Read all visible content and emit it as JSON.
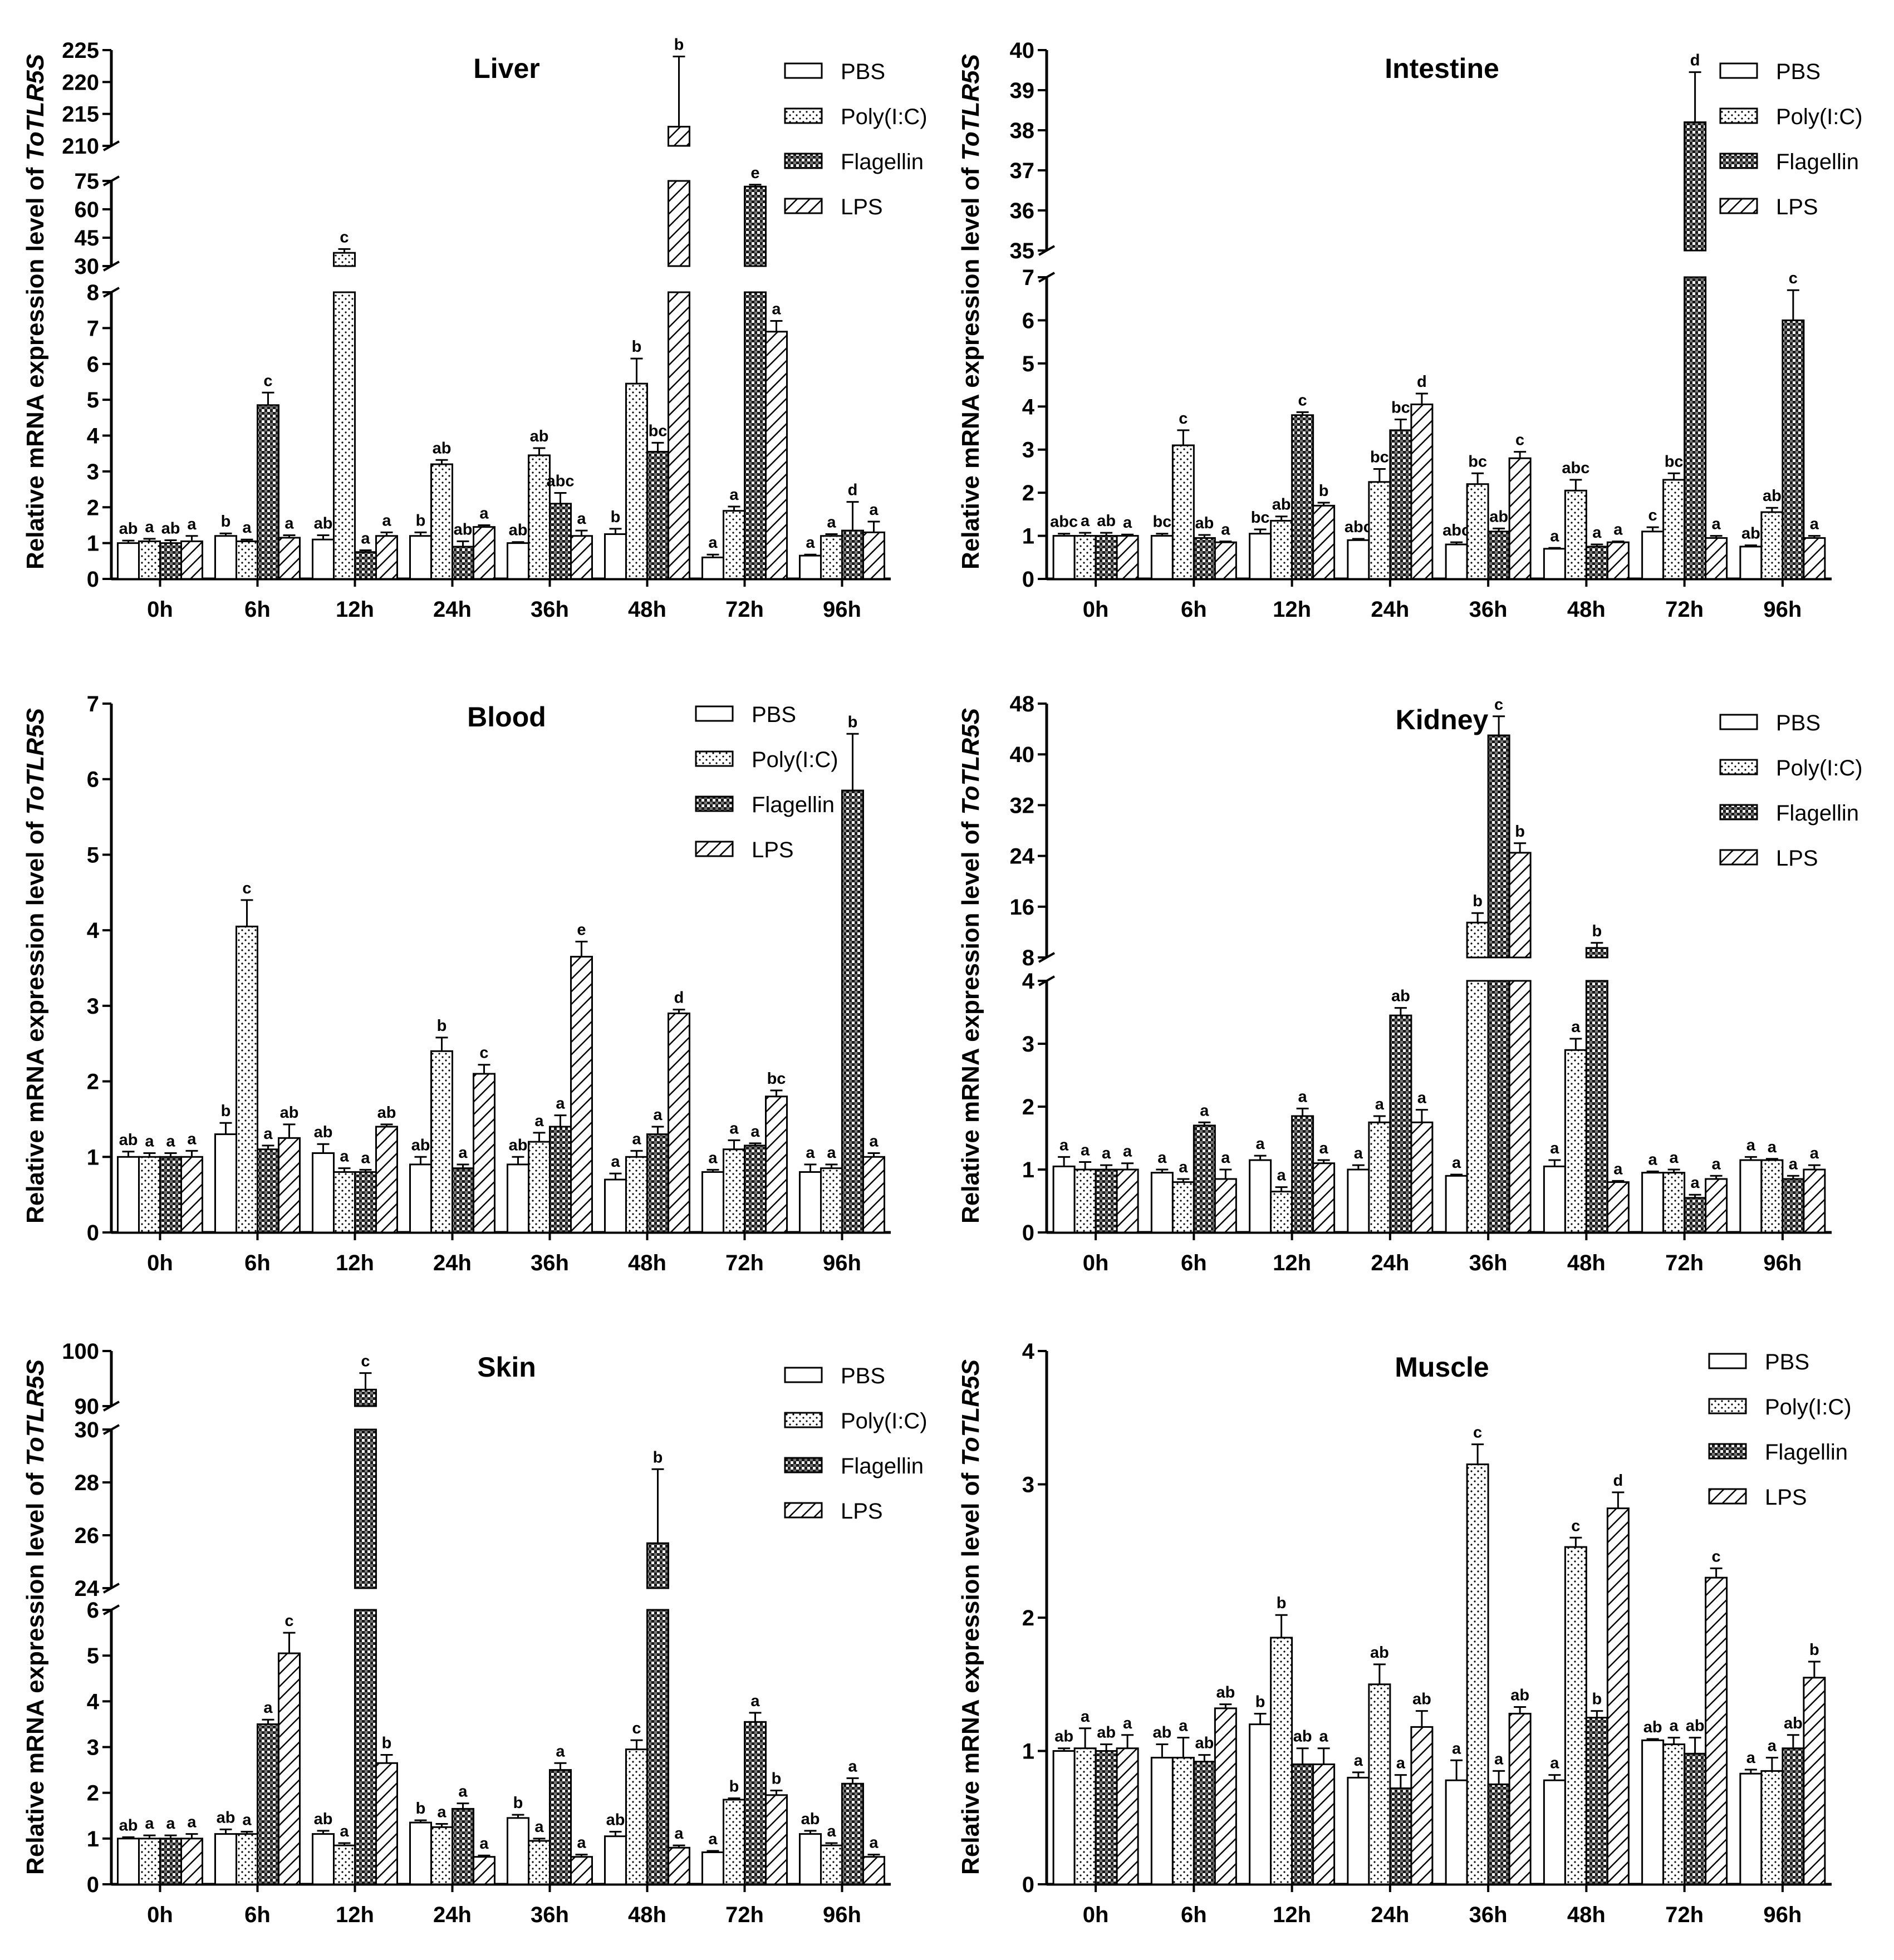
{
  "chart_data": [
    {
      "type": "bar",
      "title": "Liver",
      "ylabel": "Relative mRNA expression level of ",
      "ylabel_italic": "ToTLR5S",
      "categories": [
        "0h",
        "6h",
        "12h",
        "24h",
        "36h",
        "48h",
        "72h",
        "96h"
      ],
      "legend": [
        "PBS",
        "Poly(I:C)",
        "Flagellin",
        "LPS"
      ],
      "segments": [
        {
          "min": 0,
          "max": 8,
          "ticks": [
            0,
            1,
            2,
            3,
            4,
            5,
            6,
            7,
            8
          ]
        },
        {
          "min": 30,
          "max": 75,
          "ticks": [
            30,
            45,
            60,
            75
          ]
        },
        {
          "min": 210,
          "max": 225,
          "ticks": [
            210,
            215,
            220,
            225
          ]
        }
      ],
      "series": [
        {
          "name": "PBS",
          "values": [
            1.0,
            1.2,
            1.1,
            1.2,
            1.0,
            1.25,
            0.6,
            0.65
          ],
          "errors": [
            0.07,
            0.07,
            0.12,
            0.1,
            0.03,
            0.15,
            0.08,
            0.03
          ],
          "labels": [
            "ab",
            "b",
            "ab",
            "b",
            "ab",
            "b",
            "a",
            "a"
          ]
        },
        {
          "name": "Poly(I:C)",
          "values": [
            1.05,
            1.05,
            37,
            3.2,
            3.45,
            5.45,
            1.9,
            1.2
          ],
          "errors": [
            0.07,
            0.05,
            2,
            0.12,
            0.2,
            0.7,
            0.12,
            0.05
          ],
          "labels": [
            "a",
            "a",
            "c",
            "ab",
            "ab",
            "b",
            "a",
            "a"
          ]
        },
        {
          "name": "Flagellin",
          "values": [
            1.0,
            4.85,
            0.75,
            0.9,
            2.1,
            3.55,
            72,
            1.35
          ],
          "errors": [
            0.08,
            0.35,
            0.05,
            0.15,
            0.3,
            0.25,
            1,
            0.8
          ],
          "labels": [
            "ab",
            "c",
            "a",
            "ab",
            "abc",
            "bc",
            "e",
            "d"
          ]
        },
        {
          "name": "LPS",
          "values": [
            1.05,
            1.15,
            1.2,
            1.45,
            1.2,
            213,
            6.9,
            1.3
          ],
          "errors": [
            0.15,
            0.07,
            0.1,
            0.05,
            0.15,
            11,
            0.3,
            0.3
          ],
          "labels": [
            "a",
            "a",
            "a",
            "a",
            "a",
            "b",
            "a",
            "a"
          ]
        }
      ]
    },
    {
      "type": "bar",
      "title": "Intestine",
      "ylabel": "Relative mRNA expression level of ",
      "ylabel_italic": "ToTLR5S",
      "categories": [
        "0h",
        "6h",
        "12h",
        "24h",
        "36h",
        "48h",
        "72h",
        "96h"
      ],
      "legend": [
        "PBS",
        "Poly(I:C)",
        "Flagellin",
        "LPS"
      ],
      "segments": [
        {
          "min": 0,
          "max": 7,
          "ticks": [
            0,
            1,
            2,
            3,
            4,
            5,
            6,
            7
          ]
        },
        {
          "min": 35,
          "max": 40,
          "ticks": [
            35,
            36,
            37,
            38,
            39,
            40
          ]
        }
      ],
      "series": [
        {
          "name": "PBS",
          "values": [
            1.0,
            1.0,
            1.05,
            0.9,
            0.8,
            0.7,
            1.1,
            0.75
          ],
          "errors": [
            0.05,
            0.05,
            0.1,
            0.03,
            0.05,
            0.02,
            0.1,
            0.03
          ],
          "labels": [
            "abc",
            "bc",
            "bc",
            "abc",
            "abc",
            "a",
            "c",
            "ab"
          ]
        },
        {
          "name": "Poly(I:C)",
          "values": [
            1.0,
            3.1,
            1.35,
            2.25,
            2.2,
            2.05,
            2.3,
            1.55
          ],
          "errors": [
            0.07,
            0.35,
            0.1,
            0.3,
            0.25,
            0.25,
            0.15,
            0.1
          ],
          "labels": [
            "a",
            "c",
            "ab",
            "bc",
            "bc",
            "abc",
            "bc",
            "ab"
          ]
        },
        {
          "name": "Flagellin",
          "values": [
            1.0,
            0.95,
            3.8,
            3.45,
            1.1,
            0.75,
            38.2,
            6.0
          ],
          "errors": [
            0.07,
            0.07,
            0.07,
            0.25,
            0.07,
            0.05,
            1.25,
            0.7
          ],
          "labels": [
            "ab",
            "ab",
            "c",
            "bc",
            "ab",
            "a",
            "d",
            "c"
          ]
        },
        {
          "name": "LPS",
          "values": [
            1.0,
            0.85,
            1.7,
            4.05,
            2.8,
            0.85,
            0.95,
            0.95
          ],
          "errors": [
            0.03,
            0.02,
            0.07,
            0.25,
            0.15,
            0.02,
            0.05,
            0.05
          ],
          "labels": [
            "a",
            "a",
            "b",
            "d",
            "c",
            "a",
            "a",
            "a"
          ]
        }
      ]
    },
    {
      "type": "bar",
      "title": "Blood",
      "ylabel": "Relative mRNA expression level of ",
      "ylabel_italic": "ToTLR5S",
      "categories": [
        "0h",
        "6h",
        "12h",
        "24h",
        "36h",
        "48h",
        "72h",
        "96h"
      ],
      "legend": [
        "PBS",
        "Poly(I:C)",
        "Flagellin",
        "LPS"
      ],
      "segments": [
        {
          "min": 0,
          "max": 7,
          "ticks": [
            0,
            1,
            2,
            3,
            4,
            5,
            6,
            7
          ]
        }
      ],
      "series": [
        {
          "name": "PBS",
          "values": [
            1.0,
            1.3,
            1.05,
            0.9,
            0.9,
            0.7,
            0.8,
            0.8
          ],
          "errors": [
            0.07,
            0.15,
            0.12,
            0.1,
            0.1,
            0.08,
            0.03,
            0.1
          ],
          "labels": [
            "ab",
            "b",
            "ab",
            "ab",
            "ab",
            "a",
            "a",
            "a"
          ]
        },
        {
          "name": "Poly(I:C)",
          "values": [
            1.0,
            4.05,
            0.8,
            2.4,
            1.2,
            1.0,
            1.1,
            0.85
          ],
          "errors": [
            0.05,
            0.35,
            0.05,
            0.18,
            0.12,
            0.08,
            0.12,
            0.05
          ],
          "labels": [
            "a",
            "c",
            "a",
            "b",
            "a",
            "a",
            "a",
            "a"
          ]
        },
        {
          "name": "Flagellin",
          "values": [
            1.0,
            1.1,
            0.8,
            0.85,
            1.4,
            1.3,
            1.15,
            5.85
          ],
          "errors": [
            0.05,
            0.05,
            0.03,
            0.05,
            0.15,
            0.1,
            0.03,
            0.75
          ],
          "labels": [
            "a",
            "a",
            "a",
            "a",
            "a",
            "a",
            "a",
            "b"
          ]
        },
        {
          "name": "LPS",
          "values": [
            1.0,
            1.25,
            1.4,
            2.1,
            3.65,
            2.9,
            1.8,
            1.0
          ],
          "errors": [
            0.08,
            0.18,
            0.03,
            0.12,
            0.2,
            0.05,
            0.08,
            0.05
          ],
          "labels": [
            "a",
            "ab",
            "ab",
            "c",
            "e",
            "d",
            "bc",
            "a"
          ]
        }
      ]
    },
    {
      "type": "bar",
      "title": "Kidney",
      "ylabel": "Relative mRNA expression level of ",
      "ylabel_italic": "ToTLR5S",
      "categories": [
        "0h",
        "6h",
        "12h",
        "24h",
        "36h",
        "48h",
        "72h",
        "96h"
      ],
      "legend": [
        "PBS",
        "Poly(I:C)",
        "Flagellin",
        "LPS"
      ],
      "segments": [
        {
          "min": 0,
          "max": 4,
          "ticks": [
            0,
            1,
            2,
            3,
            4
          ]
        },
        {
          "min": 8,
          "max": 48,
          "ticks": [
            8,
            16,
            24,
            32,
            40,
            48
          ]
        }
      ],
      "series": [
        {
          "name": "PBS",
          "values": [
            1.05,
            0.95,
            1.15,
            1.0,
            0.9,
            1.05,
            0.95,
            1.15
          ],
          "errors": [
            0.15,
            0.05,
            0.07,
            0.07,
            0.02,
            0.1,
            0.02,
            0.05
          ],
          "labels": [
            "a",
            "a",
            "a",
            "a",
            "a",
            "a",
            "a",
            "a"
          ]
        },
        {
          "name": "Poly(I:C)",
          "values": [
            1.0,
            0.8,
            0.65,
            1.75,
            13.5,
            2.9,
            0.95,
            1.15
          ],
          "errors": [
            0.12,
            0.05,
            0.07,
            0.1,
            1.5,
            0.18,
            0.05,
            0.02
          ],
          "labels": [
            "a",
            "a",
            "a",
            "a",
            "b",
            "a",
            "a",
            "a"
          ]
        },
        {
          "name": "Flagellin",
          "values": [
            1.0,
            1.7,
            1.85,
            3.45,
            43,
            9.5,
            0.55,
            0.85
          ],
          "errors": [
            0.07,
            0.05,
            0.12,
            0.12,
            3,
            0.8,
            0.05,
            0.05
          ],
          "labels": [
            "a",
            "a",
            "a",
            "ab",
            "c",
            "b",
            "a",
            "a"
          ]
        },
        {
          "name": "LPS",
          "values": [
            1.0,
            0.85,
            1.1,
            1.75,
            24.5,
            0.8,
            0.85,
            1.0
          ],
          "errors": [
            0.1,
            0.15,
            0.05,
            0.2,
            1.5,
            0.02,
            0.05,
            0.07
          ],
          "labels": [
            "a",
            "a",
            "a",
            "a",
            "b",
            "a",
            "a",
            "a"
          ]
        }
      ]
    },
    {
      "type": "bar",
      "title": "Skin",
      "ylabel": "Relative mRNA expression level of ",
      "ylabel_italic": "ToTLR5S",
      "categories": [
        "0h",
        "6h",
        "12h",
        "24h",
        "36h",
        "48h",
        "72h",
        "96h"
      ],
      "legend": [
        "PBS",
        "Poly(I:C)",
        "Flagellin",
        "LPS"
      ],
      "segments": [
        {
          "min": 0,
          "max": 6,
          "ticks": [
            0,
            1,
            2,
            3,
            4,
            5,
            6
          ]
        },
        {
          "min": 24,
          "max": 30,
          "ticks": [
            24,
            26,
            28,
            30
          ]
        },
        {
          "min": 90,
          "max": 100,
          "ticks": [
            90,
            100
          ]
        }
      ],
      "series": [
        {
          "name": "PBS",
          "values": [
            1.0,
            1.1,
            1.1,
            1.35,
            1.45,
            1.05,
            0.7,
            1.1
          ],
          "errors": [
            0.03,
            0.1,
            0.07,
            0.05,
            0.07,
            0.1,
            0.03,
            0.07
          ],
          "labels": [
            "ab",
            "ab",
            "ab",
            "b",
            "b",
            "ab",
            "a",
            "ab"
          ]
        },
        {
          "name": "Poly(I:C)",
          "values": [
            1.0,
            1.1,
            0.85,
            1.25,
            0.95,
            2.95,
            1.85,
            0.85
          ],
          "errors": [
            0.07,
            0.05,
            0.05,
            0.07,
            0.05,
            0.2,
            0.03,
            0.05
          ],
          "labels": [
            "a",
            "a",
            "a",
            "a",
            "a",
            "c",
            "b",
            "a"
          ]
        },
        {
          "name": "Flagellin",
          "values": [
            1.0,
            3.5,
            93,
            1.65,
            2.5,
            25.7,
            3.55,
            2.2
          ],
          "errors": [
            0.07,
            0.1,
            3,
            0.12,
            0.15,
            2.8,
            0.2,
            0.12
          ],
          "labels": [
            "a",
            "a",
            "c",
            "a",
            "a",
            "b",
            "a",
            "a"
          ]
        },
        {
          "name": "LPS",
          "values": [
            1.0,
            5.05,
            2.65,
            0.6,
            0.6,
            0.8,
            1.95,
            0.6
          ],
          "errors": [
            0.1,
            0.45,
            0.18,
            0.03,
            0.05,
            0.05,
            0.1,
            0.05
          ],
          "labels": [
            "a",
            "c",
            "b",
            "a",
            "a",
            "a",
            "b",
            "a"
          ]
        }
      ]
    },
    {
      "type": "bar",
      "title": "Muscle",
      "ylabel": "Relative mRNA expression level of ",
      "ylabel_italic": "ToTLR5S",
      "categories": [
        "0h",
        "6h",
        "12h",
        "24h",
        "36h",
        "48h",
        "72h",
        "96h"
      ],
      "legend": [
        "PBS",
        "Poly(I:C)",
        "Flagellin",
        "LPS"
      ],
      "segments": [
        {
          "min": 0,
          "max": 4,
          "ticks": [
            0,
            1,
            2,
            3,
            4
          ]
        }
      ],
      "series": [
        {
          "name": "PBS",
          "values": [
            1.0,
            0.95,
            1.2,
            0.8,
            0.78,
            0.78,
            1.08,
            0.83
          ],
          "errors": [
            0.02,
            0.1,
            0.08,
            0.04,
            0.15,
            0.04,
            0.01,
            0.03
          ],
          "labels": [
            "ab",
            "ab",
            "b",
            "a",
            "a",
            "a",
            "ab",
            "a"
          ]
        },
        {
          "name": "Poly(I:C)",
          "values": [
            1.02,
            0.95,
            1.85,
            1.5,
            3.15,
            2.53,
            1.05,
            0.85
          ],
          "errors": [
            0.15,
            0.15,
            0.17,
            0.15,
            0.15,
            0.07,
            0.05,
            0.1
          ],
          "labels": [
            "a",
            "a",
            "b",
            "ab",
            "c",
            "c",
            "a",
            "a"
          ]
        },
        {
          "name": "Flagellin",
          "values": [
            1.0,
            0.92,
            0.9,
            0.72,
            0.75,
            1.25,
            0.98,
            1.02
          ],
          "errors": [
            0.05,
            0.05,
            0.12,
            0.1,
            0.1,
            0.05,
            0.12,
            0.1
          ],
          "labels": [
            "ab",
            "ab",
            "ab",
            "a",
            "a",
            "b",
            "ab",
            "ab"
          ]
        },
        {
          "name": "LPS",
          "values": [
            1.02,
            1.32,
            0.9,
            1.18,
            1.28,
            2.82,
            2.3,
            1.55
          ],
          "errors": [
            0.1,
            0.03,
            0.12,
            0.12,
            0.05,
            0.12,
            0.07,
            0.12
          ],
          "labels": [
            "a",
            "ab",
            "a",
            "ab",
            "ab",
            "d",
            "c",
            "b"
          ]
        }
      ]
    }
  ]
}
